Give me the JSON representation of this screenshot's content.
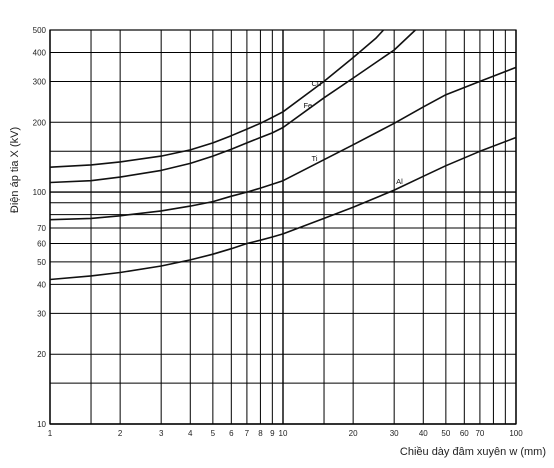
{
  "chart_data": {
    "type": "line",
    "xscale": "log",
    "yscale": "log",
    "xlim": [
      1,
      100
    ],
    "ylim": [
      10,
      500
    ],
    "xlabel": "Chiều dày đâm xuyên w (mm)",
    "ylabel": "Điện áp tia X (kV)",
    "x_ticks": [
      1,
      2,
      3,
      4,
      5,
      6,
      7,
      8,
      9,
      10,
      20,
      30,
      40,
      50,
      60,
      70,
      100
    ],
    "y_ticks": [
      10,
      20,
      30,
      40,
      50,
      60,
      70,
      100,
      200,
      300,
      400,
      500
    ],
    "x_grid": [
      1,
      1.5,
      2,
      3,
      4,
      5,
      6,
      7,
      8,
      9,
      10,
      15,
      20,
      30,
      40,
      50,
      60,
      70,
      80,
      90,
      100
    ],
    "y_grid": [
      10,
      15,
      20,
      30,
      40,
      50,
      60,
      70,
      80,
      90,
      100,
      150,
      200,
      300,
      400,
      500
    ],
    "grid": true,
    "series": [
      {
        "name": "Cu",
        "points": [
          [
            1,
            128
          ],
          [
            1.5,
            131
          ],
          [
            2,
            135
          ],
          [
            3,
            143
          ],
          [
            4,
            152
          ],
          [
            5,
            163
          ],
          [
            6,
            175
          ],
          [
            7,
            187
          ],
          [
            8,
            198
          ],
          [
            9,
            210
          ],
          [
            10,
            222
          ],
          [
            15,
            300
          ],
          [
            20,
            380
          ],
          [
            25,
            460
          ],
          [
            27,
            500
          ]
        ]
      },
      {
        "name": "Fe",
        "points": [
          [
            1,
            110
          ],
          [
            1.5,
            112
          ],
          [
            2,
            116
          ],
          [
            3,
            124
          ],
          [
            4,
            133
          ],
          [
            5,
            143
          ],
          [
            6,
            153
          ],
          [
            7,
            163
          ],
          [
            8,
            172
          ],
          [
            9,
            180
          ],
          [
            10,
            190
          ],
          [
            15,
            255
          ],
          [
            20,
            310
          ],
          [
            30,
            410
          ],
          [
            37,
            500
          ]
        ]
      },
      {
        "name": "Ti",
        "points": [
          [
            1,
            76
          ],
          [
            1.5,
            77
          ],
          [
            2,
            79
          ],
          [
            3,
            83
          ],
          [
            4,
            87
          ],
          [
            5,
            91
          ],
          [
            6,
            96
          ],
          [
            7,
            100
          ],
          [
            8,
            104
          ],
          [
            9,
            108
          ],
          [
            10,
            112
          ],
          [
            15,
            138
          ],
          [
            20,
            160
          ],
          [
            30,
            198
          ],
          [
            40,
            233
          ],
          [
            50,
            263
          ],
          [
            70,
            300
          ],
          [
            100,
            345
          ]
        ]
      },
      {
        "name": "Al",
        "points": [
          [
            1,
            42
          ],
          [
            1.5,
            43.5
          ],
          [
            2,
            45
          ],
          [
            3,
            48
          ],
          [
            4,
            51
          ],
          [
            5,
            54
          ],
          [
            6,
            57
          ],
          [
            7,
            60
          ],
          [
            8,
            62
          ],
          [
            9,
            64
          ],
          [
            10,
            66
          ],
          [
            15,
            77
          ],
          [
            20,
            86
          ],
          [
            30,
            102
          ],
          [
            40,
            117
          ],
          [
            50,
            130
          ],
          [
            70,
            150
          ],
          [
            100,
            172
          ]
        ]
      }
    ]
  }
}
